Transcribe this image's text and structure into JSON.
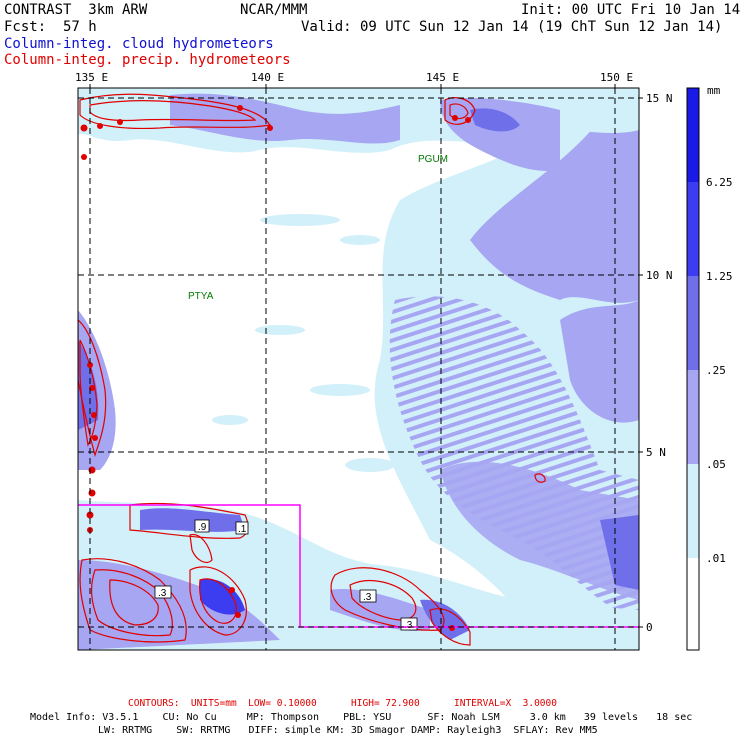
{
  "header": {
    "title": "CONTRAST  3km ARW",
    "org": "NCAR/MMM",
    "init": "Init: 00 UTC Fri 10 Jan 14",
    "fcst": "Fcst:  57 h",
    "valid": "Valid: 09 UTC Sun 12 Jan 14 (19 ChT Sun 12 Jan 14)",
    "field1": "Column-integ. cloud hydrometeors",
    "field2": "Column-integ. precip. hydrometeors"
  },
  "axes": {
    "lon_labels": [
      "135 E",
      "140 E",
      "145 E",
      "150 E"
    ],
    "lat_labels": [
      "15 N",
      "10 N",
      "5 N",
      "0"
    ]
  },
  "stations": [
    "PGUM",
    "PTYA"
  ],
  "colorbar": {
    "unit": "mm",
    "labels": [
      "6.25",
      "1.25",
      ".25",
      ".05",
      ".01"
    ],
    "colors": [
      "#1a1ae6",
      "#3c3cf0",
      "#6f6fea",
      "#a6a6f2",
      "#d2f0fa",
      "#ffffff"
    ]
  },
  "contour_labels": [
    ".9",
    ".1",
    ".3",
    ".3",
    ".3"
  ],
  "footer": {
    "contours": "CONTOURS:  UNITS=mm  LOW= 0.10000      HIGH= 72.900      INTERVAL=X  3.0000",
    "model1": "Model Info: V3.5.1    CU: No Cu     MP: Thompson    PBL: YSU      SF: Noah LSM     3.0 km   39 levels   18 sec",
    "model2": "LW: RRTMG    SW: RRTMG   DIFF: simple KM: 3D Smagor DAMP: Rayleigh3  SFLAY: Rev MM5"
  }
}
